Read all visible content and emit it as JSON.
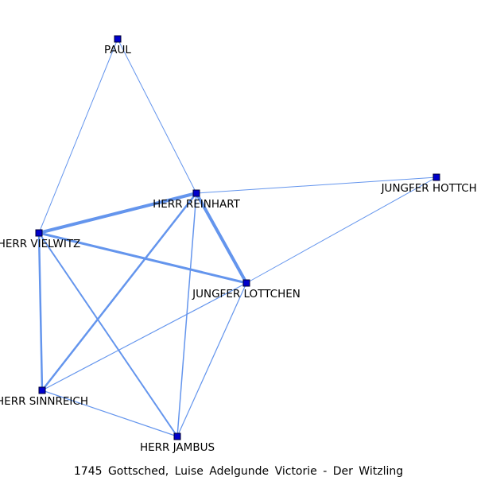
{
  "caption": "1745 Gottsched, Luise Adelgunde Victorie - Der Witzling",
  "colors": {
    "edge": "#6495ED",
    "node_fill": "#0000CC",
    "node_stroke": "#000033",
    "label": "#000000"
  },
  "network": {
    "nodes": [
      {
        "id": "paul",
        "label": "PAUL"
      },
      {
        "id": "reinhart",
        "label": "HERR REINHART"
      },
      {
        "id": "hottchen",
        "label": "JUNGFER HOTTCHEN"
      },
      {
        "id": "vielwitz",
        "label": "HERR VIELWITZ"
      },
      {
        "id": "lottchen",
        "label": "JUNGFER LOTTCHEN"
      },
      {
        "id": "sinnreich",
        "label": "HERR SINNREICH"
      },
      {
        "id": "jambus",
        "label": "HERR JAMBUS"
      }
    ],
    "edges": [
      {
        "source": "paul",
        "target": "reinhart",
        "weight": 1
      },
      {
        "source": "paul",
        "target": "vielwitz",
        "weight": 1
      },
      {
        "source": "reinhart",
        "target": "hottchen",
        "weight": 1
      },
      {
        "source": "reinhart",
        "target": "vielwitz",
        "weight": 4
      },
      {
        "source": "reinhart",
        "target": "lottchen",
        "weight": 4
      },
      {
        "source": "reinhart",
        "target": "sinnreich",
        "weight": 2.5
      },
      {
        "source": "reinhart",
        "target": "jambus",
        "weight": 1.5
      },
      {
        "source": "hottchen",
        "target": "lottchen",
        "weight": 1
      },
      {
        "source": "vielwitz",
        "target": "lottchen",
        "weight": 3
      },
      {
        "source": "vielwitz",
        "target": "sinnreich",
        "weight": 2.5
      },
      {
        "source": "vielwitz",
        "target": "jambus",
        "weight": 2
      },
      {
        "source": "lottchen",
        "target": "sinnreich",
        "weight": 1.2
      },
      {
        "source": "lottchen",
        "target": "jambus",
        "weight": 1.2
      },
      {
        "source": "sinnreich",
        "target": "jambus",
        "weight": 1.2
      }
    ]
  }
}
